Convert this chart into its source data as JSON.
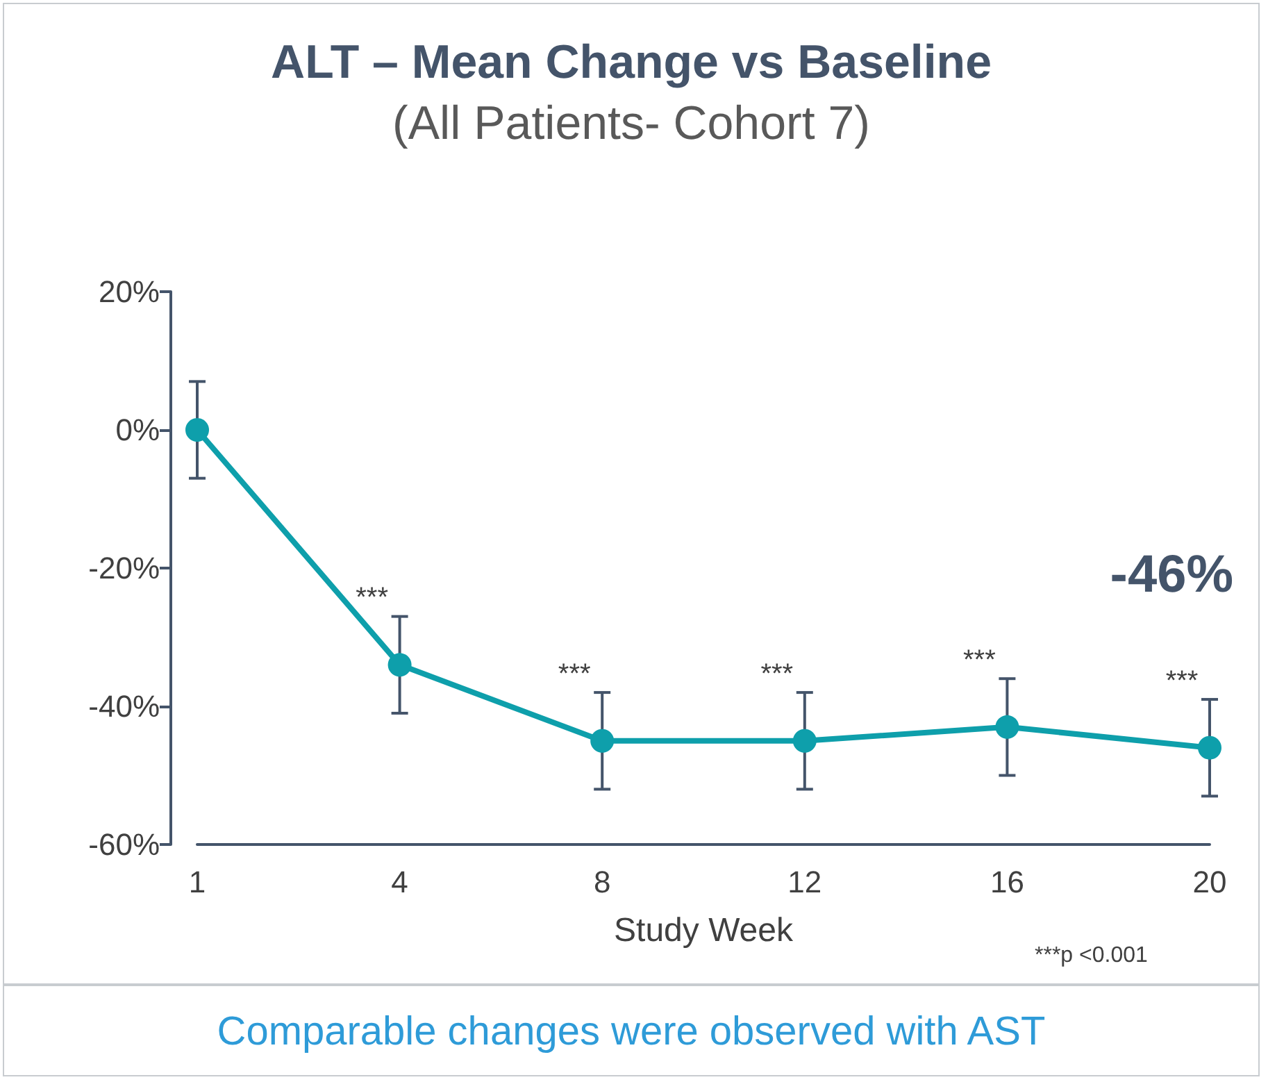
{
  "chart_data": {
    "type": "line",
    "title": "ALT – Mean Change vs Baseline",
    "subtitle": "(All Patients- Cohort 7)",
    "xlabel": "Study Week",
    "categories": [
      "1",
      "4",
      "8",
      "12",
      "16",
      "20"
    ],
    "series": [
      {
        "color": "#0e9fab",
        "values": [
          0,
          -34,
          -45,
          -45,
          -43,
          -46
        ],
        "errors": [
          7,
          7,
          7,
          7,
          7,
          7
        ]
      }
    ],
    "ylim": [
      -60,
      20
    ],
    "yticks": [
      {
        "value": 20,
        "label": "20%"
      },
      {
        "value": 0,
        "label": "0%"
      },
      {
        "value": -20,
        "label": "-20%"
      },
      {
        "value": -40,
        "label": "-40%"
      },
      {
        "value": -60,
        "label": "-60%"
      }
    ],
    "grid": false,
    "marker": "circle",
    "line_style": "solid",
    "annotations": [
      {
        "text": "***",
        "x": "4",
        "y": -34
      },
      {
        "text": "***",
        "x": "8",
        "y": -45
      },
      {
        "text": "***",
        "x": "12",
        "y": -45
      },
      {
        "text": "***",
        "x": "16",
        "y": -43
      },
      {
        "text": "***",
        "x": "20",
        "y": -46
      },
      "-46%",
      "***p <0.001",
      "Comparable changes were observed with AST"
    ]
  }
}
